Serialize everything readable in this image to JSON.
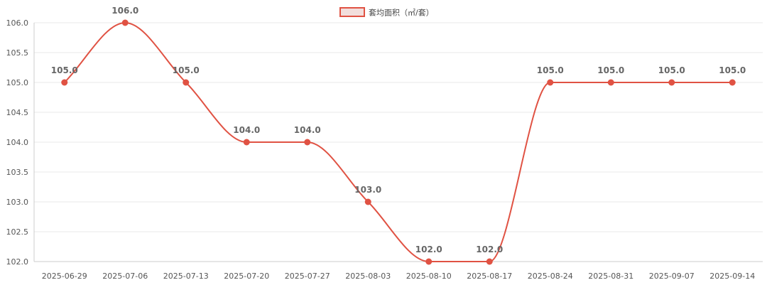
{
  "chart_data": {
    "type": "line",
    "title": "",
    "xlabel": "",
    "ylabel": "",
    "categories": [
      "2025-06-29",
      "2025-07-06",
      "2025-07-13",
      "2025-07-20",
      "2025-07-27",
      "2025-08-03",
      "2025-08-10",
      "2025-08-17",
      "2025-08-24",
      "2025-08-31",
      "2025-09-07",
      "2025-09-14"
    ],
    "series": [
      {
        "name": "套均面积（㎡/套）",
        "values": [
          105.0,
          106.0,
          105.0,
          104.0,
          104.0,
          103.0,
          102.0,
          102.0,
          105.0,
          105.0,
          105.0,
          105.0
        ],
        "labels": [
          "105.0",
          "106.0",
          "105.0",
          "104.0",
          "104.0",
          "103.0",
          "102.0",
          "102.0",
          "105.0",
          "105.0",
          "105.0",
          "105.0"
        ]
      }
    ],
    "ylim": [
      102.0,
      106.0
    ],
    "yticks": [
      "102.0",
      "102.5",
      "103.0",
      "103.5",
      "104.0",
      "104.5",
      "105.0",
      "105.5",
      "106.0"
    ],
    "grid": true,
    "legend_position": "top-center",
    "colors": {
      "line": "#e05243",
      "legend_fill": "#f2dedc",
      "grid": "#e8e8e8",
      "axis": "#cccccc"
    }
  }
}
